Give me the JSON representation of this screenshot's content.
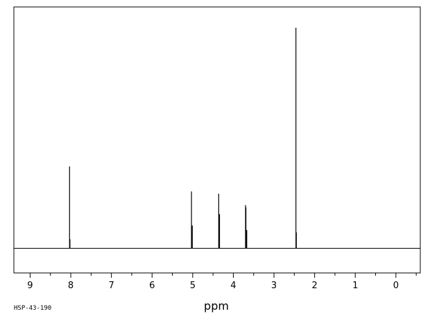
{
  "chart_data": {
    "type": "line",
    "title": "",
    "xlabel": "ppm",
    "ylabel": "",
    "sample_id": "HSP-43-190",
    "x_reversed": true,
    "xlim": [
      9.4,
      -0.6
    ],
    "ylim": [
      0,
      1
    ],
    "grid": false,
    "x_ticks": [
      9,
      8,
      7,
      6,
      5,
      4,
      3,
      2,
      1,
      0
    ],
    "peaks": [
      {
        "shift": 8.03,
        "intensity": 0.36
      },
      {
        "shift": 8.02,
        "intensity": 0.04
      },
      {
        "shift": 5.03,
        "intensity": 0.25
      },
      {
        "shift": 5.02,
        "intensity": 0.1
      },
      {
        "shift": 5.01,
        "intensity": 0.1
      },
      {
        "shift": 4.36,
        "intensity": 0.24
      },
      {
        "shift": 4.35,
        "intensity": 0.15
      },
      {
        "shift": 4.34,
        "intensity": 0.15
      },
      {
        "shift": 3.7,
        "intensity": 0.19
      },
      {
        "shift": 3.69,
        "intensity": 0.18
      },
      {
        "shift": 3.68,
        "intensity": 0.08
      },
      {
        "shift": 3.67,
        "intensity": 0.08
      },
      {
        "shift": 2.46,
        "intensity": 0.97
      },
      {
        "shift": 2.45,
        "intensity": 0.07
      }
    ]
  }
}
